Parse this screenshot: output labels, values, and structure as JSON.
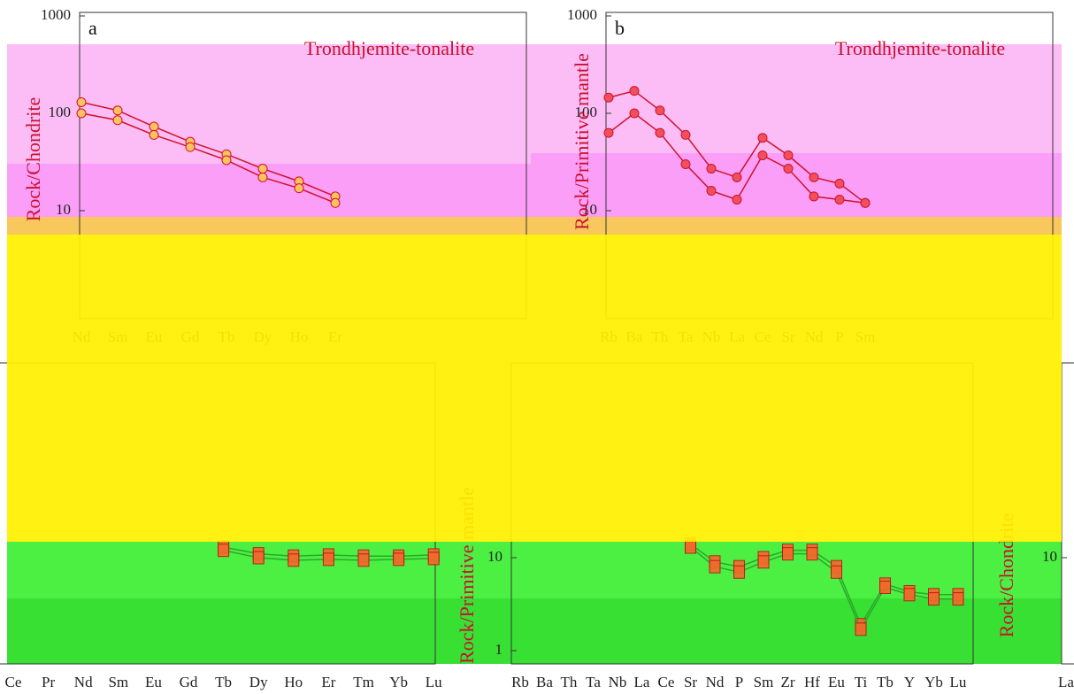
{
  "chart_data": [
    {
      "type": "line",
      "panel_label": "a",
      "title": "Trondhjemite-tonalite",
      "y_label": "Rock/Chondrite",
      "log_y": true,
      "ylim": [
        1,
        1000
      ],
      "yticks": [
        10,
        100,
        1000
      ],
      "categories": [
        "Nd",
        "Sm",
        "Eu",
        "Gd",
        "Tb",
        "Dy",
        "Ho",
        "Er"
      ],
      "marker": "circle",
      "marker_color": "#fdc35e",
      "series": [
        {
          "color": "#d0112b",
          "values": [
            130,
            107,
            73,
            51,
            38,
            27,
            20,
            14
          ]
        },
        {
          "color": "#d0112b",
          "values": [
            100,
            85,
            60,
            45,
            33,
            22,
            17,
            12
          ]
        }
      ]
    },
    {
      "type": "line",
      "panel_label": "b",
      "title": "Trondhjemite-tonalite",
      "y_label": "Rock/Primitive mantle",
      "log_y": true,
      "ylim": [
        1,
        1000
      ],
      "yticks": [
        10,
        100,
        1000
      ],
      "categories": [
        "Rb",
        "Ba",
        "Th",
        "Ta",
        "Nb",
        "La",
        "Ce",
        "Sr",
        "Nd",
        "P",
        "Sm"
      ],
      "marker": "circle",
      "marker_color": "#f0505e",
      "series": [
        {
          "color": "#d0112b",
          "values": [
            145,
            170,
            107,
            60,
            27,
            22,
            56,
            37,
            22,
            19,
            12
          ]
        },
        {
          "color": "#d0112b",
          "values": [
            63,
            100,
            63,
            30,
            16,
            13,
            37,
            27,
            14,
            13,
            12
          ]
        }
      ]
    },
    {
      "type": "line",
      "log_y": true,
      "ylim": [
        1,
        1000
      ],
      "categories": [
        "Ce",
        "Pr",
        "Nd",
        "Sm",
        "Eu",
        "Gd",
        "Tb",
        "Dy",
        "Ho",
        "Er",
        "Tm",
        "Yb",
        "Lu"
      ],
      "marker": "square",
      "marker_color": "#f26a2a",
      "series": [
        {
          "color": "#2aa82a",
          "values": [
            null,
            null,
            null,
            null,
            null,
            null,
            13,
            11,
            10.4,
            10.7,
            10.4,
            10.4,
            10.7
          ]
        },
        {
          "color": "#2aa82a",
          "values": [
            null,
            null,
            null,
            null,
            null,
            null,
            12,
            10,
            9.4,
            9.6,
            9.4,
            9.6,
            9.8
          ]
        }
      ]
    },
    {
      "type": "line",
      "y_label": "Rock/Primitive mantle",
      "log_y": true,
      "ylim": [
        1,
        1000
      ],
      "yticks": [
        1,
        10
      ],
      "categories": [
        "Rb",
        "Ba",
        "Th",
        "Ta",
        "Nb",
        "La",
        "Ce",
        "Sr",
        "Nd",
        "P",
        "Sm",
        "Zr",
        "Hf",
        "Eu",
        "Ti",
        "Tb",
        "Y",
        "Yb",
        "Lu"
      ],
      "marker": "square",
      "marker_color": "#f26a2a",
      "series": [
        {
          "color": "#2aa82a",
          "values": [
            null,
            null,
            null,
            null,
            null,
            null,
            null,
            14,
            9,
            8,
            10,
            12,
            12,
            8,
            1.9,
            5.2,
            4.3,
            4,
            4
          ]
        },
        {
          "color": "#2aa82a",
          "values": [
            null,
            null,
            null,
            null,
            null,
            null,
            null,
            13,
            8,
            7,
            9,
            11,
            11,
            7,
            1.7,
            4.8,
            4,
            3.6,
            3.6
          ]
        }
      ]
    },
    {
      "type": "line",
      "y_label": "Rock/Chondrite",
      "log_y": true,
      "ylim": [
        1,
        1000
      ],
      "yticks": [
        10
      ],
      "categories": [
        "La"
      ],
      "marker": "square",
      "marker_color": "#f26a2a",
      "series": []
    }
  ]
}
